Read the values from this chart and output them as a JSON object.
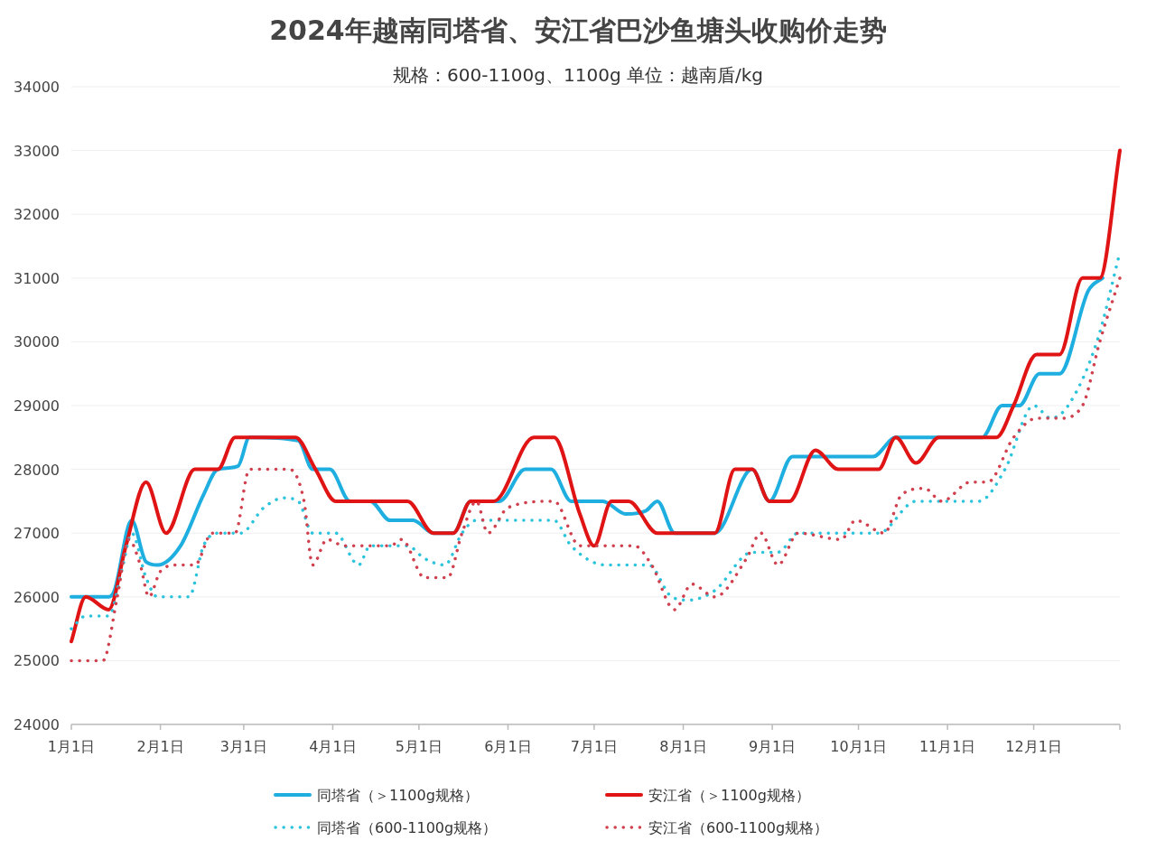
{
  "chart_data": {
    "type": "line",
    "title": "2024年越南同塔省、安江省巴沙鱼塘头收购价走势",
    "subtitle": "规格：600-1100g、1100g      单位：越南盾/kg",
    "xlim": [
      "2024-01-01",
      "2024-12-31"
    ],
    "xticks": [
      {
        "value": "2024-01-01",
        "label": "1月1日"
      },
      {
        "value": "2024-02-01",
        "label": "2月1日"
      },
      {
        "value": "2024-03-01",
        "label": "3月1日"
      },
      {
        "value": "2024-04-01",
        "label": "4月1日"
      },
      {
        "value": "2024-05-01",
        "label": "5月1日"
      },
      {
        "value": "2024-06-01",
        "label": "6月1日"
      },
      {
        "value": "2024-07-01",
        "label": "7月1日"
      },
      {
        "value": "2024-08-01",
        "label": "8月1日"
      },
      {
        "value": "2024-09-01",
        "label": "9月1日"
      },
      {
        "value": "2024-10-01",
        "label": "10月1日"
      },
      {
        "value": "2024-11-01",
        "label": "11月1日"
      },
      {
        "value": "2024-12-01",
        "label": "12月1日"
      }
    ],
    "ylim": [
      24000,
      34000
    ],
    "yticks": [
      24000,
      25000,
      26000,
      27000,
      28000,
      29000,
      30000,
      31000,
      32000,
      33000,
      34000
    ],
    "grid": "y",
    "legend": "bottom",
    "series": [
      {
        "name": "同塔省（＞1100g规格）",
        "color": "#1eaee0",
        "line_style": "solid",
        "x": [
          "2024-01-01",
          "2024-01-14",
          "2024-01-16",
          "2024-01-22",
          "2024-01-27",
          "2024-01-31",
          "2024-02-08",
          "2024-02-16",
          "2024-02-21",
          "2024-02-28",
          "2024-03-03",
          "2024-03-20",
          "2024-03-25",
          "2024-03-31",
          "2024-04-07",
          "2024-04-14",
          "2024-04-21",
          "2024-04-29",
          "2024-05-06",
          "2024-05-13",
          "2024-05-19",
          "2024-05-29",
          "2024-06-07",
          "2024-06-16",
          "2024-06-23",
          "2024-07-04",
          "2024-07-12",
          "2024-07-19",
          "2024-07-23",
          "2024-07-29",
          "2024-08-12",
          "2024-08-25",
          "2024-08-31",
          "2024-09-08",
          "2024-10-06",
          "2024-10-14",
          "2024-11-01",
          "2024-11-13",
          "2024-11-20",
          "2024-11-26",
          "2024-12-03",
          "2024-12-10",
          "2024-12-20",
          "2024-12-25"
        ],
        "values": [
          26000,
          26000,
          26100,
          27200,
          26550,
          26500,
          26800,
          27600,
          28000,
          28050,
          28500,
          28450,
          28000,
          28000,
          27500,
          27500,
          27200,
          27200,
          27000,
          27000,
          27500,
          27500,
          28000,
          28000,
          27500,
          27500,
          27300,
          27350,
          27500,
          27000,
          27000,
          28000,
          27500,
          28200,
          28200,
          28500,
          28500,
          28500,
          29000,
          29000,
          29500,
          29500,
          30800,
          31000
        ]
      },
      {
        "name": "安江省（＞1100g规格）",
        "color": "#e01414",
        "line_style": "solid",
        "x": [
          "2024-01-01",
          "2024-01-06",
          "2024-01-14",
          "2024-01-20",
          "2024-01-27",
          "2024-02-03",
          "2024-02-13",
          "2024-02-21",
          "2024-02-27",
          "2024-03-19",
          "2024-03-26",
          "2024-04-02",
          "2024-04-27",
          "2024-05-06",
          "2024-05-13",
          "2024-05-19",
          "2024-05-27",
          "2024-06-10",
          "2024-06-17",
          "2024-06-26",
          "2024-07-01",
          "2024-07-07",
          "2024-07-13",
          "2024-07-23",
          "2024-08-12",
          "2024-08-19",
          "2024-08-25",
          "2024-08-31",
          "2024-09-07",
          "2024-09-16",
          "2024-09-24",
          "2024-10-08",
          "2024-10-14",
          "2024-10-21",
          "2024-10-29",
          "2024-11-18",
          "2024-11-24",
          "2024-12-02",
          "2024-12-10",
          "2024-12-18",
          "2024-12-24",
          "2024-12-31"
        ],
        "values": [
          25300,
          26000,
          25800,
          26800,
          27800,
          27000,
          28000,
          28000,
          28500,
          28500,
          28000,
          27500,
          27500,
          27000,
          27000,
          27500,
          27500,
          28500,
          28500,
          27300,
          26800,
          27500,
          27500,
          27000,
          27000,
          28000,
          28000,
          27500,
          27500,
          28300,
          28000,
          28000,
          28500,
          28100,
          28500,
          28500,
          29000,
          29800,
          29800,
          31000,
          31000,
          33000
        ]
      },
      {
        "name": "同塔省（600-1100g规格）",
        "color": "#2cc4dc",
        "line_style": "dotted",
        "x": [
          "2024-01-01",
          "2024-01-06",
          "2024-01-14",
          "2024-01-19",
          "2024-01-22",
          "2024-01-27",
          "2024-01-31",
          "2024-02-11",
          "2024-02-16",
          "2024-02-21",
          "2024-02-29",
          "2024-03-08",
          "2024-03-15",
          "2024-03-20",
          "2024-03-25",
          "2024-04-02",
          "2024-04-10",
          "2024-04-14",
          "2024-04-27",
          "2024-05-03",
          "2024-05-10",
          "2024-05-16",
          "2024-05-21",
          "2024-06-02",
          "2024-06-17",
          "2024-06-23",
          "2024-07-05",
          "2024-07-20",
          "2024-07-28",
          "2024-08-03",
          "2024-08-12",
          "2024-08-25",
          "2024-09-03",
          "2024-09-10",
          "2024-10-08",
          "2024-10-21",
          "2024-11-12",
          "2024-11-21",
          "2024-12-01",
          "2024-12-07",
          "2024-12-13",
          "2024-12-23",
          "2024-12-31"
        ],
        "values": [
          25500,
          25700,
          25700,
          26500,
          27000,
          26300,
          26000,
          26000,
          26800,
          27000,
          27000,
          27400,
          27550,
          27500,
          27000,
          27000,
          26500,
          26800,
          26800,
          26600,
          26500,
          27000,
          27200,
          27200,
          27200,
          26800,
          26500,
          26500,
          26000,
          25950,
          26100,
          26700,
          26700,
          27000,
          27000,
          27500,
          27500,
          28000,
          29000,
          28800,
          29000,
          30000,
          31400
        ]
      },
      {
        "name": "安江省（600-1100g规格）",
        "color": "#d0404e",
        "line_style": "dotted",
        "x": [
          "2024-01-01",
          "2024-01-12",
          "2024-01-17",
          "2024-01-21",
          "2024-01-25",
          "2024-01-28",
          "2024-02-01",
          "2024-02-07",
          "2024-02-13",
          "2024-02-19",
          "2024-02-27",
          "2024-03-03",
          "2024-03-17",
          "2024-03-22",
          "2024-03-25",
          "2024-03-30",
          "2024-04-05",
          "2024-04-21",
          "2024-04-25",
          "2024-05-03",
          "2024-05-11",
          "2024-05-16",
          "2024-05-21",
          "2024-05-25",
          "2024-06-01",
          "2024-06-17",
          "2024-06-26",
          "2024-07-15",
          "2024-07-21",
          "2024-07-29",
          "2024-08-04",
          "2024-08-12",
          "2024-08-23",
          "2024-08-28",
          "2024-09-03",
          "2024-09-10",
          "2024-09-25",
          "2024-09-30",
          "2024-10-10",
          "2024-10-16",
          "2024-10-24",
          "2024-10-30",
          "2024-11-09",
          "2024-11-15",
          "2024-11-24",
          "2024-12-02",
          "2024-12-10",
          "2024-12-18",
          "2024-12-24",
          "2024-12-31"
        ],
        "values": [
          25000,
          25000,
          26000,
          26900,
          26500,
          26000,
          26400,
          26500,
          26500,
          27000,
          27000,
          28000,
          28000,
          27500,
          26500,
          26900,
          26800,
          26800,
          26900,
          26300,
          26300,
          27000,
          27500,
          27000,
          27400,
          27500,
          26800,
          26800,
          26500,
          25800,
          26200,
          26000,
          26600,
          27000,
          26500,
          27000,
          26900,
          27200,
          27000,
          27600,
          27700,
          27500,
          27800,
          27800,
          28500,
          28800,
          28800,
          29000,
          30000,
          31000
        ]
      }
    ]
  }
}
